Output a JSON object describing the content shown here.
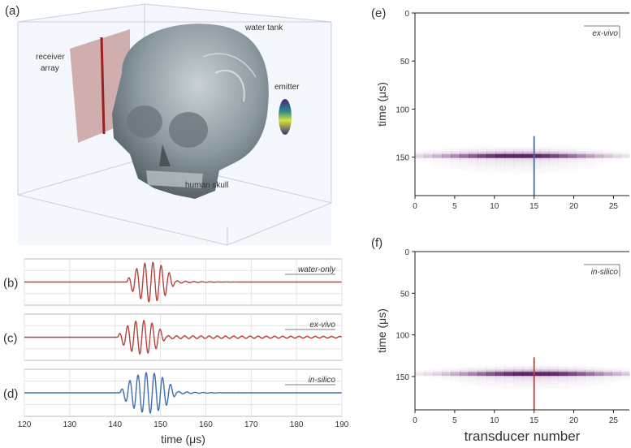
{
  "panel_labels": {
    "a": "(a)",
    "b": "(b)",
    "c": "(c)",
    "d": "(d)",
    "e": "(e)",
    "f": "(f)"
  },
  "illustration": {
    "water_tank": "water tank",
    "receiver_array_line1": "receiver",
    "receiver_array_line2": "array",
    "emitter": "emitter",
    "human_skull": "human skull"
  },
  "colors": {
    "red_trace": "#b5443c",
    "blue_trace": "#3f6fb0",
    "heatmap": "#5a1d63"
  },
  "chart_data": [
    {
      "id": "b",
      "type": "line",
      "legend": "water-only",
      "color": "#b5443c",
      "xlim": [
        120,
        190
      ],
      "onset": 142.5,
      "peak_amplitude": 1.0,
      "period": 1.8,
      "cycles_main": 6,
      "tail": "short ringing to ~157"
    },
    {
      "id": "c",
      "type": "line",
      "legend": "ex-vivo",
      "color": "#b5443c",
      "xlim": [
        120,
        190
      ],
      "onset": 140.5,
      "peak_amplitude": 0.85,
      "period": 1.8,
      "cycles_main": 6,
      "tail": "long ringing to 190"
    },
    {
      "id": "d",
      "type": "line",
      "legend": "in-silico",
      "color": "#3f6fb0",
      "xlim": [
        120,
        190
      ],
      "onset": 141.0,
      "peak_amplitude": 1.0,
      "period": 1.8,
      "cycles_main": 7,
      "tail": "short ringing to ~160"
    },
    {
      "id": "bcd_axis",
      "type": "line",
      "xlabel": "time (μs)",
      "xticks": [
        120,
        130,
        140,
        150,
        160,
        170,
        180,
        190
      ]
    },
    {
      "id": "e",
      "type": "heatmap",
      "legend": "ex-vivo",
      "xlim": [
        0,
        27
      ],
      "ylim": [
        0,
        190
      ],
      "xticks": [
        0,
        5,
        10,
        15,
        20,
        25
      ],
      "yticks": [
        0,
        50,
        100,
        150
      ],
      "ylabel": "time (μs)",
      "xlabel": "",
      "band_center_time": 148,
      "band_peak_transducer": 13,
      "marker_transducer": 15,
      "marker_time_range": [
        128,
        190
      ],
      "marker_color": "#3f6fb0"
    },
    {
      "id": "f",
      "type": "heatmap",
      "legend": "in-silico",
      "xlim": [
        0,
        27
      ],
      "ylim": [
        0,
        190
      ],
      "xticks": [
        0,
        5,
        10,
        15,
        20,
        25
      ],
      "yticks": [
        0,
        50,
        100,
        150
      ],
      "ylabel": "time (μs)",
      "xlabel": "transducer number",
      "band_center_time": 146,
      "band_peak_transducer": 15,
      "marker_transducer": 15,
      "marker_time_range": [
        127,
        190
      ],
      "marker_color": "#b5443c"
    }
  ]
}
